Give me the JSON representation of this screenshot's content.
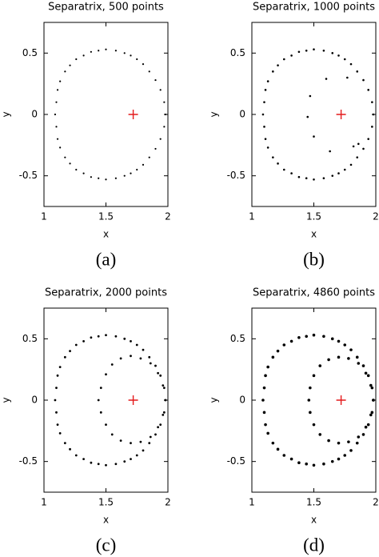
{
  "chart_data": [
    {
      "type": "scatter",
      "title": "Separatrix, 500 points",
      "label": "(a)",
      "xlabel": "x",
      "ylabel": "y",
      "xlim": [
        1,
        2
      ],
      "ylim": [
        -0.75,
        0.75
      ],
      "xticks": [
        1,
        1.5,
        2
      ],
      "yticks": [
        -0.5,
        0,
        0.5
      ],
      "marker_size": 1.1,
      "center": {
        "x": 1.72,
        "y": 0,
        "color": "#e41a1c"
      },
      "series": [
        {
          "color": "#000000",
          "x": [
            1.98,
            1.97,
            1.94,
            1.9,
            1.85,
            1.8,
            1.75,
            1.7,
            1.65,
            1.58,
            1.5,
            1.44,
            1.38,
            1.32,
            1.26,
            1.21,
            1.17,
            1.13,
            1.11,
            1.1,
            1.09,
            1.1,
            1.11,
            1.13,
            1.17,
            1.21,
            1.26,
            1.32,
            1.38,
            1.44,
            1.5,
            1.58,
            1.65,
            1.7,
            1.75,
            1.8,
            1.85,
            1.9,
            1.94,
            1.97
          ],
          "y": [
            0,
            0.1,
            0.2,
            0.28,
            0.35,
            0.41,
            0.45,
            0.48,
            0.5,
            0.52,
            0.53,
            0.52,
            0.51,
            0.48,
            0.45,
            0.4,
            0.35,
            0.27,
            0.2,
            0.1,
            0,
            -0.1,
            -0.2,
            -0.27,
            -0.35,
            -0.4,
            -0.45,
            -0.48,
            -0.51,
            -0.52,
            -0.53,
            -0.52,
            -0.5,
            -0.48,
            -0.45,
            -0.41,
            -0.35,
            -0.28,
            -0.2,
            -0.1
          ]
        }
      ]
    },
    {
      "type": "scatter",
      "title": "Separatrix, 1000 points",
      "label": "(b)",
      "xlabel": "x",
      "ylabel": "y",
      "xlim": [
        1,
        2
      ],
      "ylim": [
        -0.75,
        0.75
      ],
      "xticks": [
        1,
        1.5,
        2
      ],
      "yticks": [
        -0.5,
        0,
        0.5
      ],
      "marker_size": 1.3,
      "center": {
        "x": 1.72,
        "y": 0,
        "color": "#e41a1c"
      },
      "series": [
        {
          "color": "#000000",
          "x": [
            1.98,
            1.97,
            1.94,
            1.9,
            1.85,
            1.8,
            1.75,
            1.7,
            1.65,
            1.58,
            1.5,
            1.44,
            1.38,
            1.32,
            1.26,
            1.21,
            1.17,
            1.13,
            1.11,
            1.1,
            1.09,
            1.1,
            1.11,
            1.13,
            1.17,
            1.21,
            1.26,
            1.32,
            1.38,
            1.44,
            1.5,
            1.58,
            1.65,
            1.7,
            1.75,
            1.8,
            1.85,
            1.9,
            1.94,
            1.97
          ],
          "y": [
            0,
            0.1,
            0.2,
            0.28,
            0.35,
            0.41,
            0.45,
            0.48,
            0.5,
            0.52,
            0.53,
            0.52,
            0.51,
            0.48,
            0.45,
            0.4,
            0.35,
            0.27,
            0.2,
            0.1,
            0,
            -0.1,
            -0.2,
            -0.27,
            -0.35,
            -0.4,
            -0.45,
            -0.48,
            -0.51,
            -0.52,
            -0.53,
            -0.52,
            -0.5,
            -0.48,
            -0.45,
            -0.41,
            -0.35,
            -0.28,
            -0.2,
            -0.1
          ]
        },
        {
          "color": "#000000",
          "x": [
            1.6,
            1.77,
            1.47,
            1.45,
            1.5,
            1.63,
            1.82,
            1.86
          ],
          "y": [
            0.29,
            0.3,
            0.15,
            -0.02,
            -0.18,
            -0.3,
            -0.26,
            -0.24
          ]
        }
      ]
    },
    {
      "type": "scatter",
      "title": "Separatrix, 2000 points",
      "label": "(c)",
      "xlabel": "x",
      "ylabel": "y",
      "xlim": [
        1,
        2
      ],
      "ylim": [
        -0.75,
        0.75
      ],
      "xticks": [
        1,
        1.5,
        2
      ],
      "yticks": [
        -0.5,
        0,
        0.5
      ],
      "marker_size": 1.4,
      "center": {
        "x": 1.72,
        "y": 0,
        "color": "#e41a1c"
      },
      "series": [
        {
          "color": "#000000",
          "x": [
            1.98,
            1.97,
            1.94,
            1.9,
            1.85,
            1.8,
            1.75,
            1.7,
            1.65,
            1.58,
            1.5,
            1.44,
            1.38,
            1.32,
            1.26,
            1.21,
            1.17,
            1.13,
            1.11,
            1.1,
            1.09,
            1.1,
            1.11,
            1.13,
            1.17,
            1.21,
            1.26,
            1.32,
            1.38,
            1.44,
            1.5,
            1.58,
            1.65,
            1.7,
            1.75,
            1.8,
            1.85,
            1.9,
            1.94,
            1.97
          ],
          "y": [
            0,
            0.1,
            0.2,
            0.28,
            0.35,
            0.41,
            0.45,
            0.48,
            0.5,
            0.52,
            0.53,
            0.52,
            0.51,
            0.48,
            0.45,
            0.4,
            0.35,
            0.27,
            0.2,
            0.1,
            0,
            -0.1,
            -0.2,
            -0.27,
            -0.35,
            -0.4,
            -0.45,
            -0.48,
            -0.51,
            -0.52,
            -0.53,
            -0.52,
            -0.5,
            -0.48,
            -0.45,
            -0.41,
            -0.35,
            -0.28,
            -0.2,
            -0.1
          ]
        },
        {
          "color": "#000000",
          "x": [
            1.98,
            1.96,
            1.92,
            1.86,
            1.78,
            1.7,
            1.62,
            1.55,
            1.5,
            1.46,
            1.44,
            1.46,
            1.5,
            1.55,
            1.62,
            1.7,
            1.78,
            1.86,
            1.92,
            1.96
          ],
          "y": [
            0,
            0.12,
            0.22,
            0.3,
            0.34,
            0.36,
            0.34,
            0.29,
            0.21,
            0.1,
            0,
            -0.1,
            -0.2,
            -0.28,
            -0.33,
            -0.35,
            -0.34,
            -0.3,
            -0.22,
            -0.12
          ]
        }
      ]
    },
    {
      "type": "scatter",
      "title": "Separatrix, 4860 points",
      "label": "(d)",
      "xlabel": "x",
      "ylabel": "y",
      "xlim": [
        1,
        2
      ],
      "ylim": [
        -0.75,
        0.75
      ],
      "xticks": [
        1,
        1.5,
        2
      ],
      "yticks": [
        -0.5,
        0,
        0.5
      ],
      "marker_size": 1.8,
      "center": {
        "x": 1.72,
        "y": 0,
        "color": "#e41a1c"
      },
      "series": [
        {
          "color": "#000000",
          "x": [
            1.98,
            1.97,
            1.94,
            1.9,
            1.85,
            1.8,
            1.75,
            1.7,
            1.65,
            1.58,
            1.5,
            1.44,
            1.38,
            1.32,
            1.26,
            1.21,
            1.17,
            1.13,
            1.11,
            1.1,
            1.09,
            1.1,
            1.11,
            1.13,
            1.17,
            1.21,
            1.26,
            1.32,
            1.38,
            1.44,
            1.5,
            1.58,
            1.65,
            1.7,
            1.75,
            1.8,
            1.85,
            1.9,
            1.94,
            1.97
          ],
          "y": [
            0,
            0.1,
            0.2,
            0.28,
            0.35,
            0.41,
            0.45,
            0.48,
            0.5,
            0.52,
            0.53,
            0.52,
            0.51,
            0.48,
            0.45,
            0.4,
            0.35,
            0.27,
            0.2,
            0.1,
            0,
            -0.1,
            -0.2,
            -0.27,
            -0.35,
            -0.4,
            -0.45,
            -0.48,
            -0.51,
            -0.52,
            -0.53,
            -0.52,
            -0.5,
            -0.48,
            -0.45,
            -0.41,
            -0.35,
            -0.28,
            -0.2,
            -0.1
          ]
        },
        {
          "color": "#000000",
          "x": [
            1.98,
            1.96,
            1.92,
            1.86,
            1.78,
            1.7,
            1.62,
            1.55,
            1.5,
            1.47,
            1.46,
            1.47,
            1.5,
            1.55,
            1.62,
            1.7,
            1.78,
            1.86,
            1.92,
            1.96
          ],
          "y": [
            0,
            0.12,
            0.22,
            0.3,
            0.34,
            0.35,
            0.33,
            0.28,
            0.2,
            0.1,
            0,
            -0.1,
            -0.2,
            -0.28,
            -0.33,
            -0.35,
            -0.34,
            -0.3,
            -0.22,
            -0.12
          ]
        }
      ]
    }
  ]
}
